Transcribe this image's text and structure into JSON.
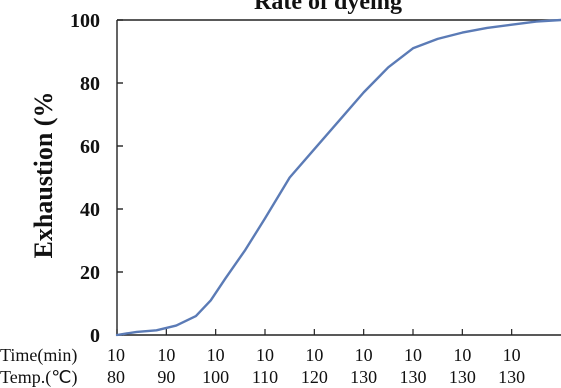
{
  "chart_data": {
    "type": "line",
    "title": "Rate of dyeing",
    "ylabel": "Exhaustion (%",
    "ylim": [
      0,
      100
    ],
    "yticks": [
      0,
      20,
      40,
      60,
      80,
      100
    ],
    "xlim": [
      0,
      90
    ],
    "x_ticks": [
      0,
      10,
      20,
      30,
      40,
      50,
      60,
      70,
      80
    ],
    "x_tick_rows": [
      {
        "label": "Time(min)",
        "values": [
          "10",
          "10",
          "10",
          "10",
          "10",
          "10",
          "10",
          "10",
          "10"
        ]
      },
      {
        "label": "Temp.(℃)",
        "values": [
          "80",
          "90",
          "100",
          "110",
          "120",
          "130",
          "130",
          "130",
          "130"
        ]
      }
    ],
    "grid": false,
    "series": [
      {
        "color": "#5b7bb6",
        "x": [
          0,
          4,
          8,
          12,
          16,
          19,
          22,
          26,
          30,
          35,
          40,
          45,
          50,
          55,
          60,
          65,
          70,
          75,
          80,
          85,
          90
        ],
        "y": [
          0,
          1,
          1.5,
          3,
          6,
          11,
          18,
          27,
          37,
          50,
          59,
          68,
          77,
          85,
          91,
          94,
          96,
          97.5,
          98.5,
          99.5,
          100
        ]
      }
    ]
  }
}
